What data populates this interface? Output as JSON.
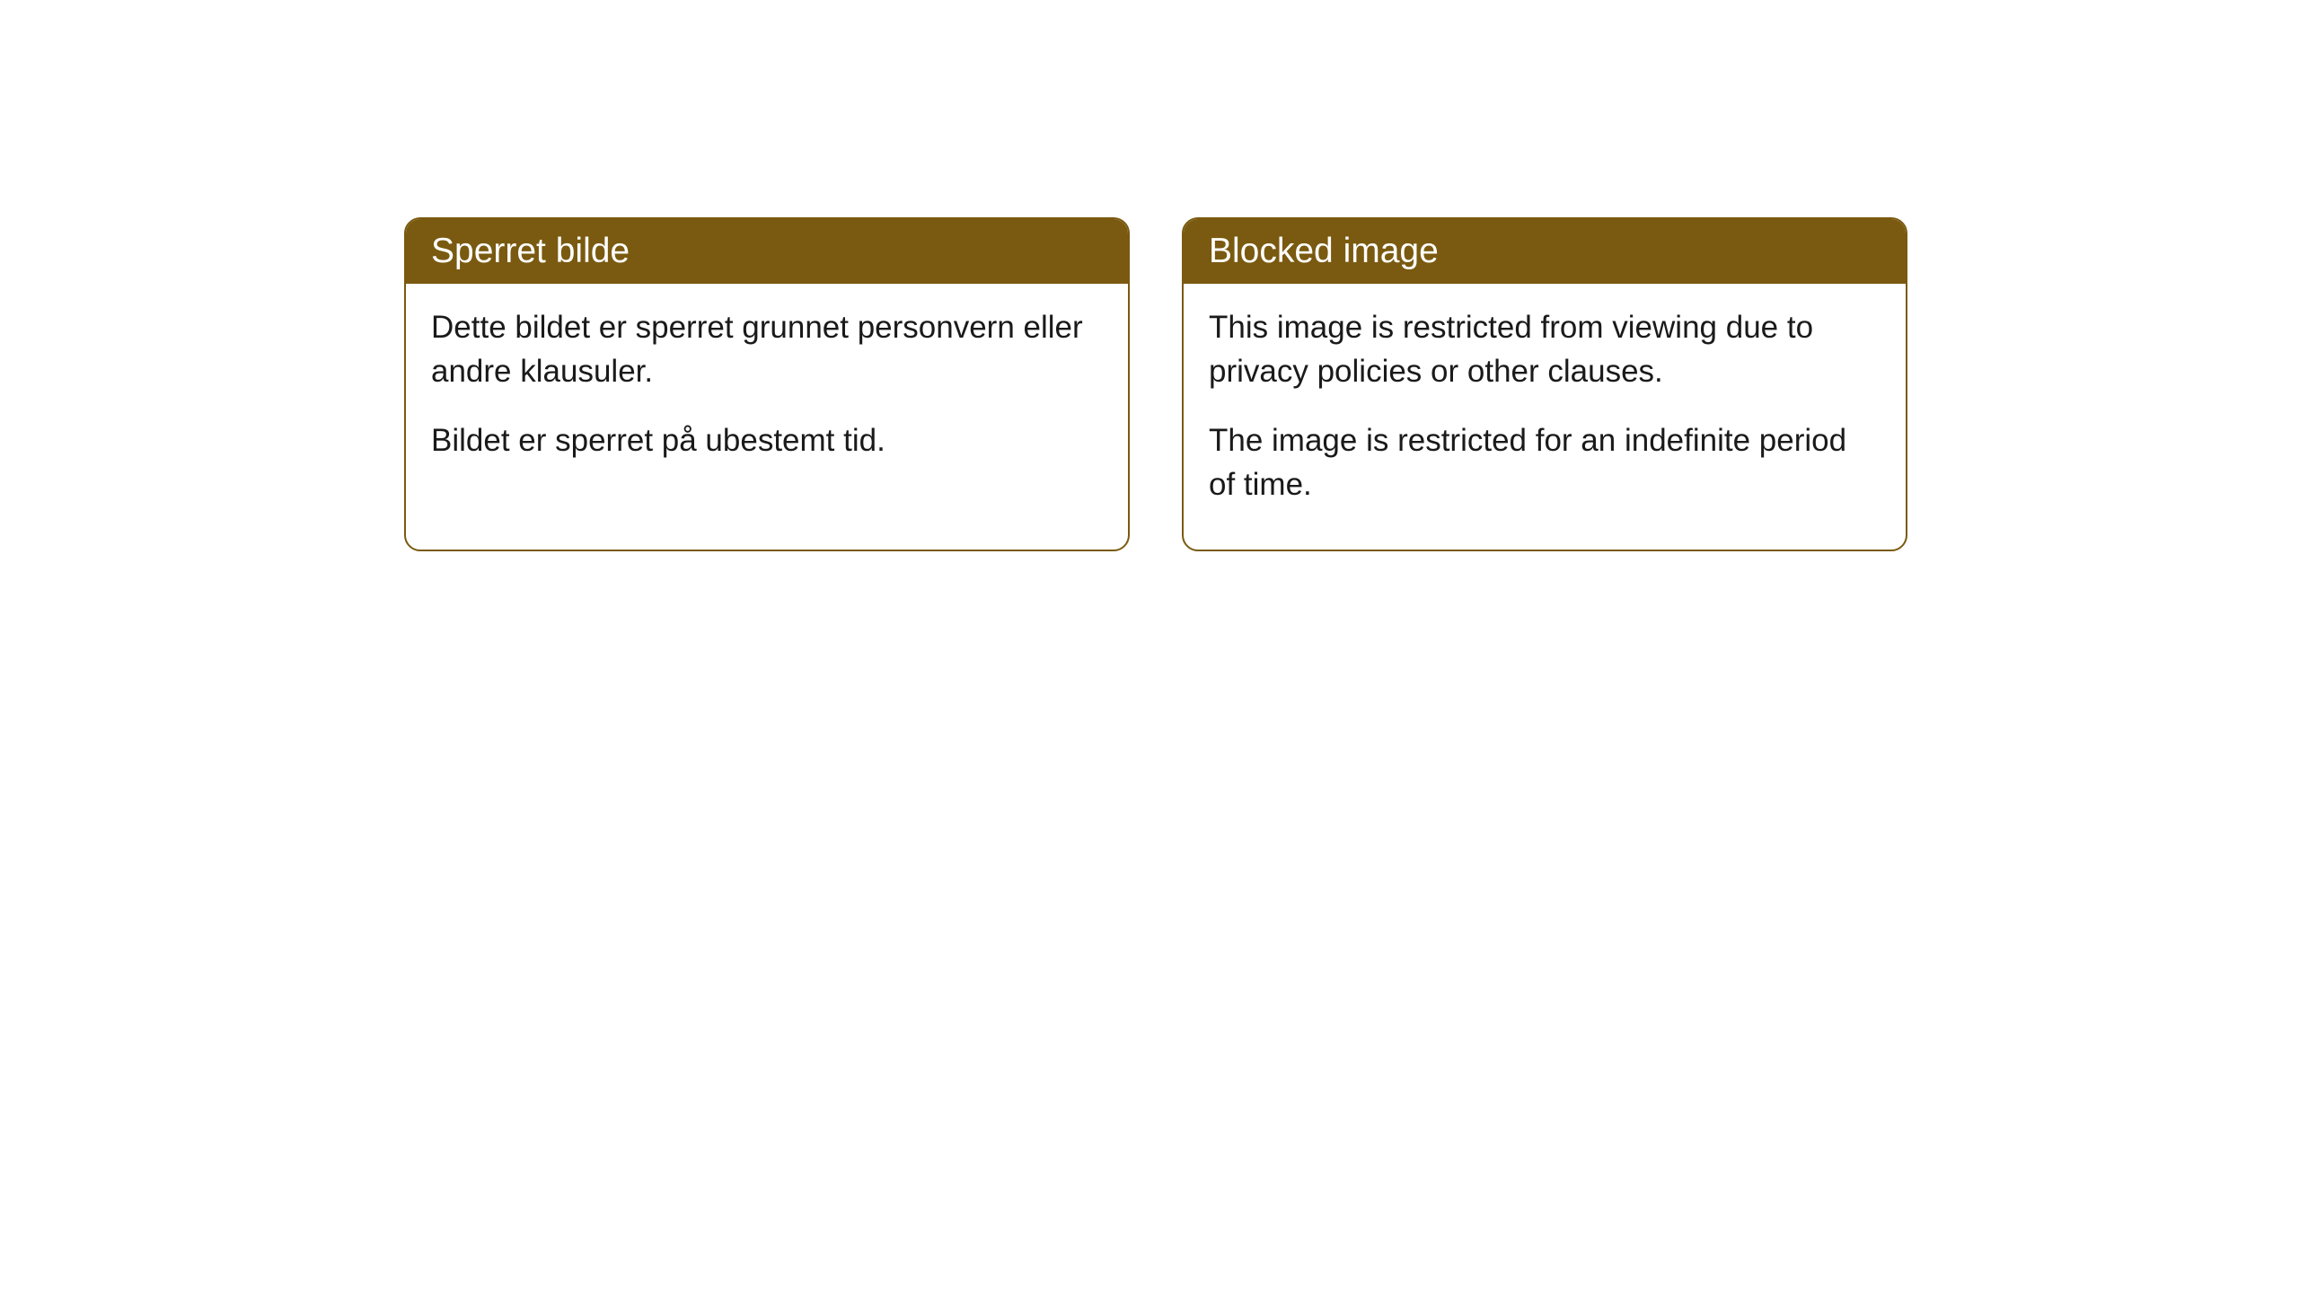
{
  "cards": [
    {
      "title": "Sperret bilde",
      "paragraph1": "Dette bildet er sperret grunnet personvern eller andre klausuler.",
      "paragraph2": "Bildet er sperret på ubestemt tid."
    },
    {
      "title": "Blocked image",
      "paragraph1": "This image is restricted from viewing due to privacy policies or other clauses.",
      "paragraph2": "The image is restricted for an indefinite period of time."
    }
  ],
  "styling": {
    "header_background": "#7a5a10",
    "header_text_color": "#ffffff",
    "border_color": "#7a5a10",
    "body_background": "#ffffff",
    "body_text_color": "#1a1a1a",
    "border_radius": 18,
    "title_fontsize": 39,
    "body_fontsize": 35
  }
}
